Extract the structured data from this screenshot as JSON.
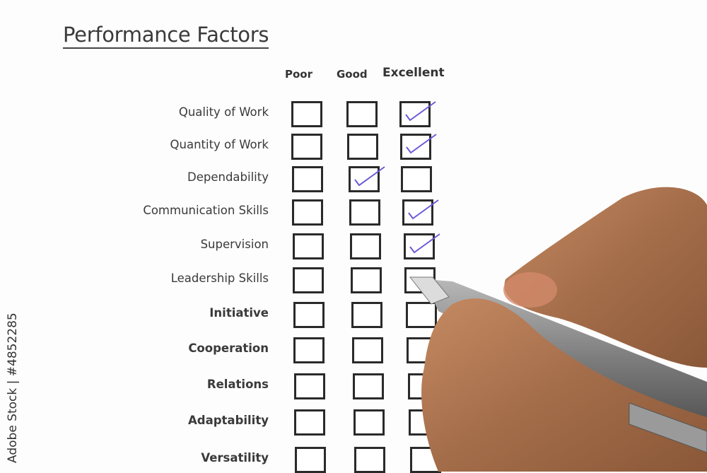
{
  "form": {
    "title": "Performance Factors",
    "columns": [
      "Poor",
      "Good",
      "Excellent"
    ],
    "rows": [
      {
        "label": "Quality of Work",
        "checked": "Excellent"
      },
      {
        "label": "Quantity of Work",
        "checked": "Excellent"
      },
      {
        "label": "Dependability",
        "checked": "Good"
      },
      {
        "label": "Communication Skills",
        "checked": "Excellent"
      },
      {
        "label": "Supervision",
        "checked": "Excellent"
      },
      {
        "label": "Leadership Skills",
        "checked": null
      },
      {
        "label": "Initiative",
        "checked": null
      },
      {
        "label": "Cooperation",
        "checked": null
      },
      {
        "label": "Relations",
        "checked": null
      },
      {
        "label": "Adaptability",
        "checked": null
      },
      {
        "label": "Versatility",
        "checked": null
      }
    ]
  },
  "watermark": "Adobe Stock | #4852285",
  "colors": {
    "check_ink": "#6a5ad8",
    "skin": "#b07a55",
    "pen": "#8a8a8a"
  }
}
